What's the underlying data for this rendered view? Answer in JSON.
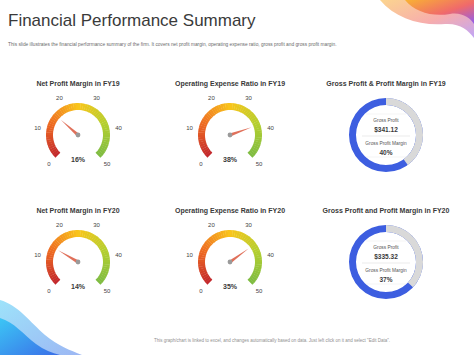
{
  "title": "Financial Performance Summary",
  "subtitle": "This slide illustrates the financial performance summary of the firm. It covers net profit margin, operating expense ratio, gross profit and gross profit margin.",
  "footer": "This graph/chart is linked to excel, and changes automatically based on data. Just left click on it and select \"Edit Data\".",
  "chart_data": [
    {
      "type": "gauge",
      "title": "Net Profit Margin in FY19",
      "values": [
        16
      ],
      "value_labels": [
        "16%"
      ],
      "ylim": [
        0,
        50
      ],
      "yticks": [
        0,
        10,
        20,
        30,
        40,
        50
      ]
    },
    {
      "type": "gauge",
      "title": "Operating Expense Ratio in FY19",
      "values": [
        38
      ],
      "value_labels": [
        "38%"
      ],
      "ylim": [
        0,
        50
      ],
      "yticks": [
        0,
        10,
        20,
        30,
        40,
        50
      ]
    },
    {
      "type": "donut",
      "title": "Gross Profit & Profit Margin in FY19",
      "categories": [
        "Gross Profit",
        "Gross Profit Margin"
      ],
      "values": [
        341.12,
        40
      ],
      "value_labels": [
        "$341.12",
        "40%"
      ]
    },
    {
      "type": "gauge",
      "title": "Net Profit Margin in FY20",
      "values": [
        14
      ],
      "value_labels": [
        "14%"
      ],
      "ylim": [
        0,
        50
      ],
      "yticks": [
        0,
        10,
        20,
        30,
        40,
        50
      ]
    },
    {
      "type": "gauge",
      "title": "Operating Expense Ratio in FY20",
      "values": [
        35
      ],
      "value_labels": [
        "35%"
      ],
      "ylim": [
        0,
        50
      ],
      "yticks": [
        0,
        10,
        20,
        30,
        40,
        50
      ]
    },
    {
      "type": "donut",
      "title": "Gross Profit and Profit Margin in FY20",
      "categories": [
        "Gross Profit",
        "Gross Profit Margin"
      ],
      "values": [
        335.32,
        37
      ],
      "value_labels": [
        "$335.32",
        "37%"
      ]
    }
  ]
}
